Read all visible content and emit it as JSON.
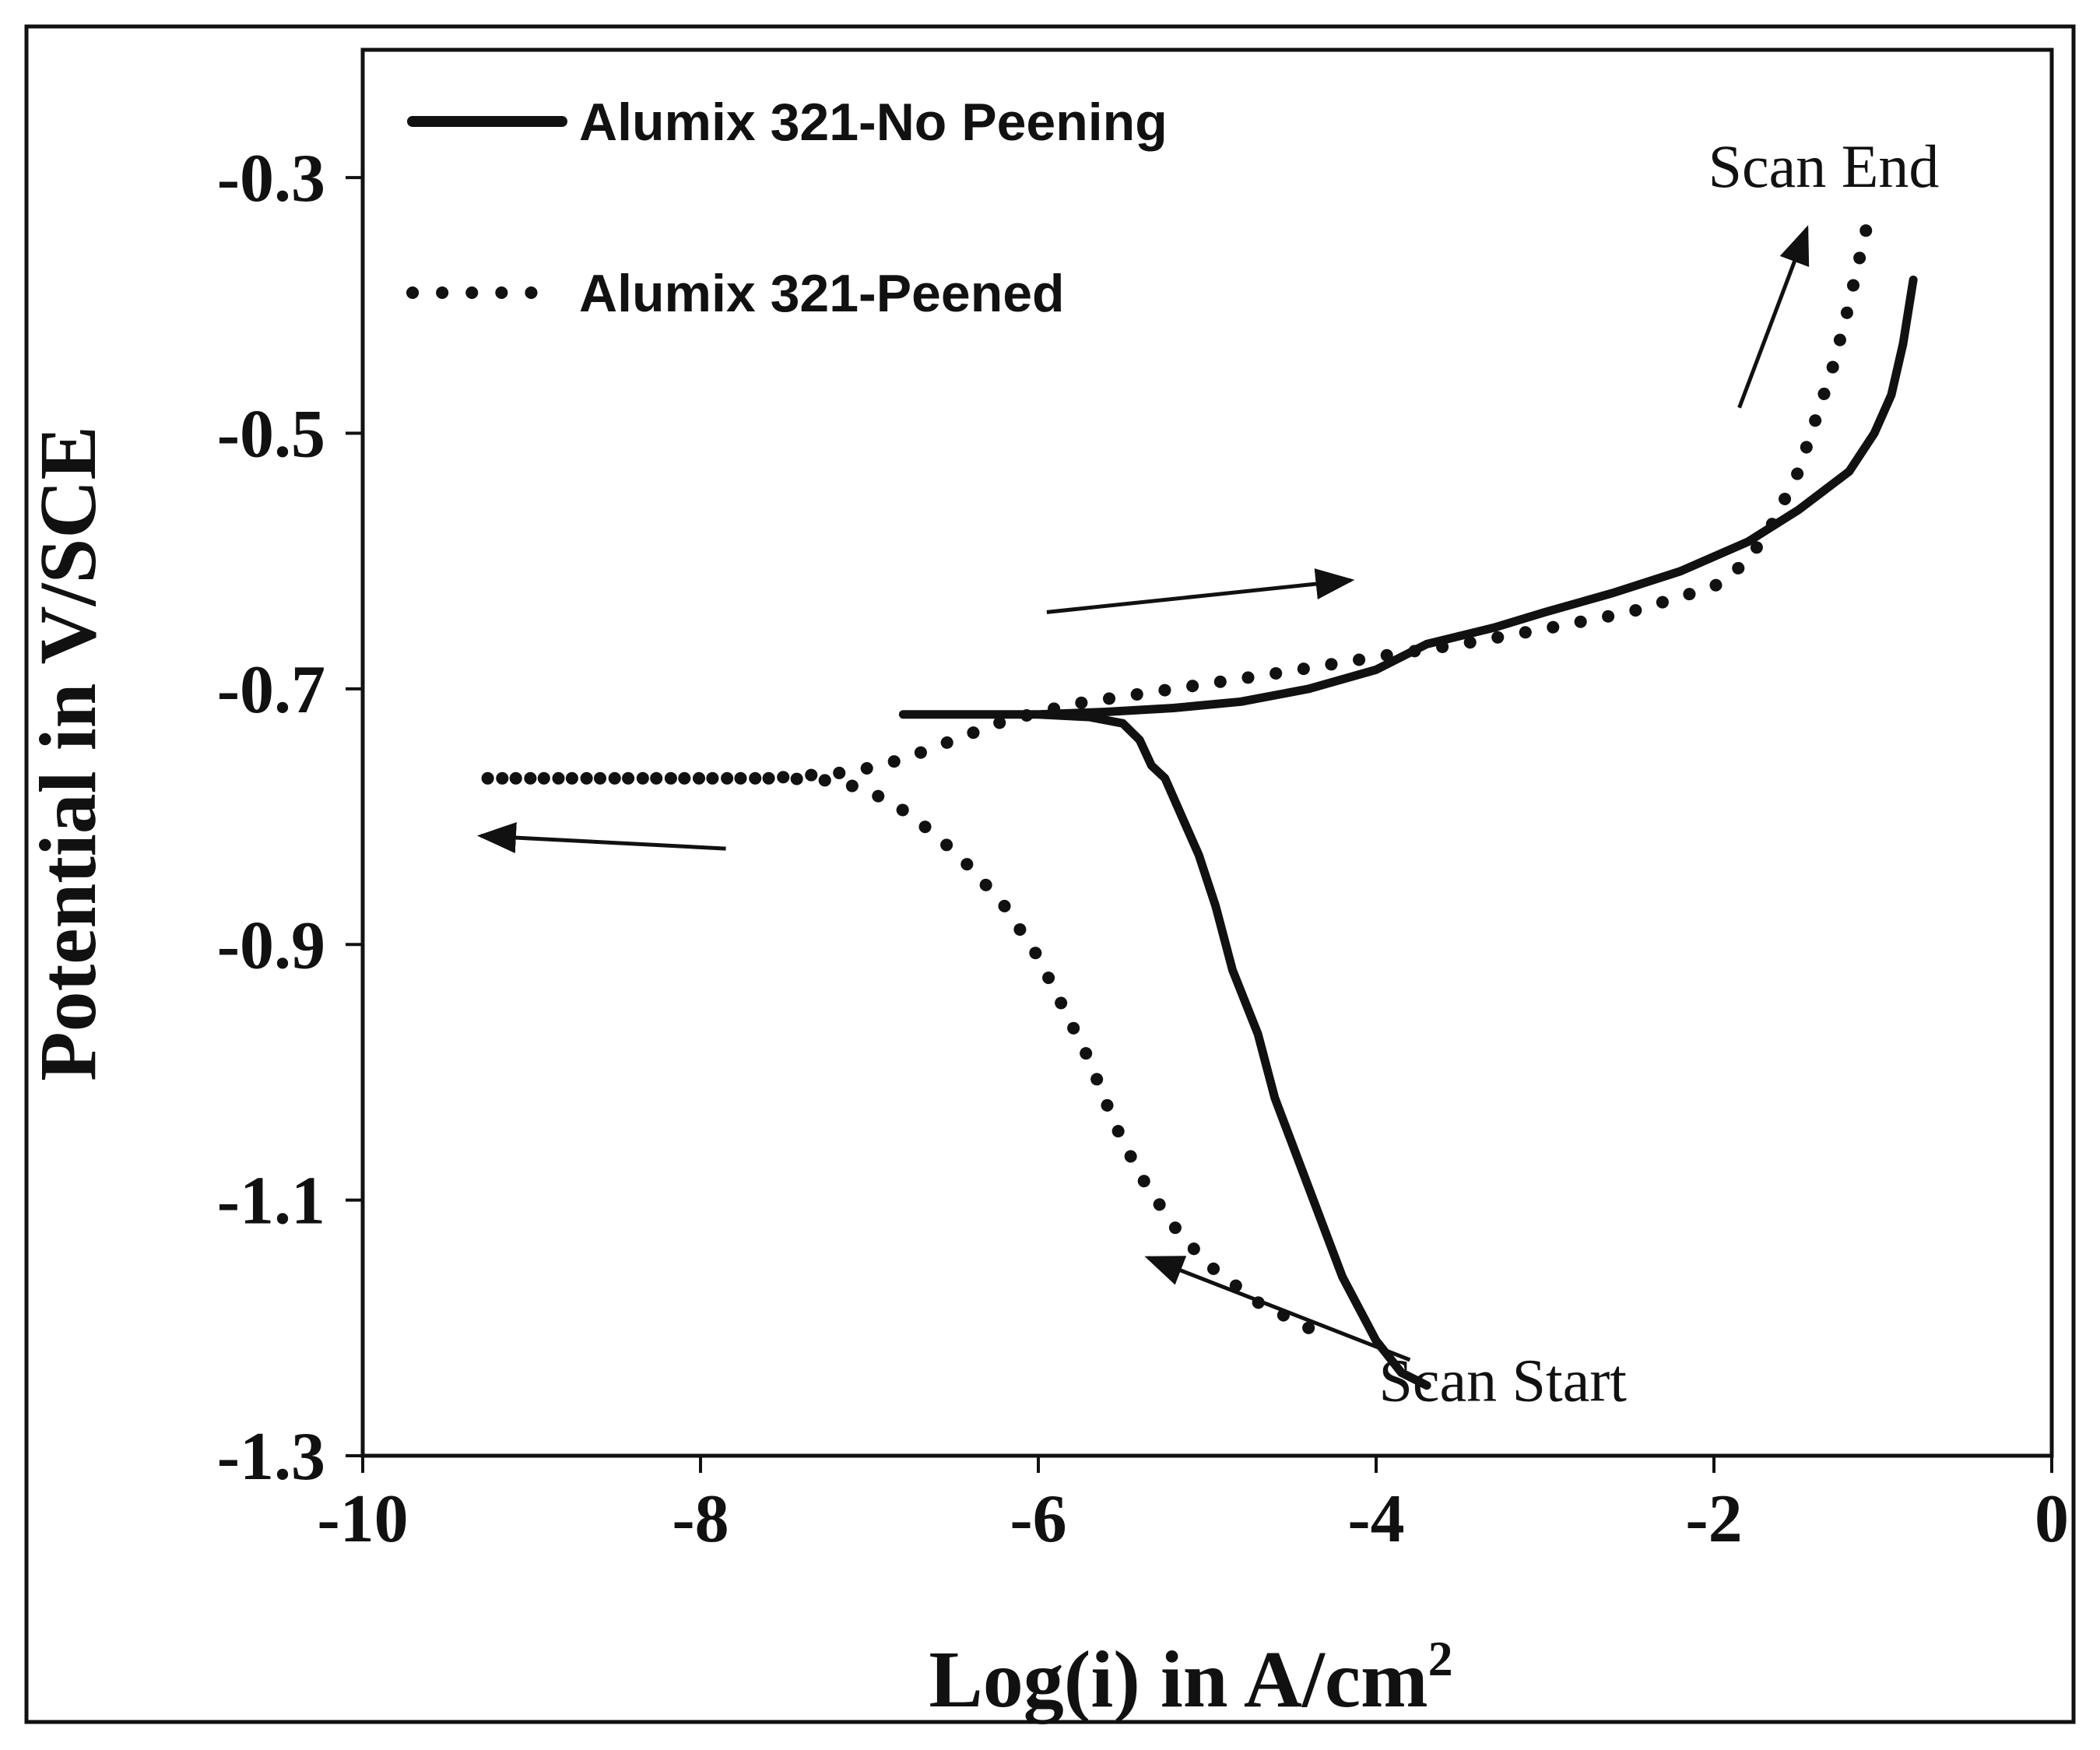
{
  "chart_data": {
    "type": "line",
    "title": "",
    "xlabel": "Log(i) in A/cm",
    "xlabel_superscript": "2",
    "ylabel": "Potential in V/SCE",
    "xlim": [
      -10,
      0
    ],
    "ylim": [
      -1.3,
      -0.2
    ],
    "xticks": [
      -10,
      -8,
      -6,
      -4,
      -2,
      0
    ],
    "xtick_labels": [
      "-10",
      "-8",
      "-6",
      "-4",
      "-2",
      "0"
    ],
    "yticks": [
      -0.3,
      -0.5,
      -0.7,
      -0.9,
      -1.1,
      -1.3
    ],
    "ytick_labels": [
      "-0.3",
      "-0.5",
      "-0.7",
      "-0.9",
      "-1.1",
      "-1.3"
    ],
    "grid": false,
    "legend_position": "top-left",
    "series": [
      {
        "name": "Alumix 321-No Peening",
        "style": "solid",
        "x": [
          -3.7,
          -3.85,
          -4.0,
          -4.2,
          -4.4,
          -4.6,
          -4.7,
          -4.85,
          -4.95,
          -5.05,
          -5.15,
          -5.25,
          -5.33,
          -5.4,
          -5.5,
          -5.7,
          -6.0,
          -6.4,
          -6.8,
          -6.4,
          -6.0,
          -5.6,
          -5.2,
          -4.8,
          -4.4,
          -4.0,
          -3.7,
          -3.3,
          -3.0,
          -2.6,
          -2.2,
          -1.8,
          -1.5,
          -1.2,
          -1.05,
          -0.95,
          -0.88,
          -0.82
        ],
        "y": [
          -1.245,
          -1.235,
          -1.21,
          -1.16,
          -1.09,
          -1.02,
          -0.97,
          -0.92,
          -0.87,
          -0.83,
          -0.8,
          -0.77,
          -0.76,
          -0.74,
          -0.727,
          -0.722,
          -0.72,
          -0.72,
          -0.72,
          -0.72,
          -0.72,
          -0.718,
          -0.715,
          -0.71,
          -0.7,
          -0.685,
          -0.665,
          -0.652,
          -0.64,
          -0.625,
          -0.608,
          -0.585,
          -0.56,
          -0.53,
          -0.5,
          -0.47,
          -0.43,
          -0.38
        ]
      },
      {
        "name": "Alumix 321-Peened",
        "style": "dotted",
        "x": [
          -4.4,
          -4.7,
          -5.0,
          -5.2,
          -5.4,
          -5.55,
          -5.7,
          -5.85,
          -6.0,
          -6.2,
          -6.4,
          -6.6,
          -6.8,
          -7.0,
          -7.2,
          -7.5,
          -7.8,
          -8.2,
          -8.6,
          -9.0,
          -9.3,
          -8.8,
          -8.2,
          -7.6,
          -7.1,
          -6.8,
          -6.5,
          -6.2,
          -5.8,
          -5.2,
          -4.6,
          -4.0,
          -3.5,
          -3.0,
          -2.5,
          -2.0,
          -1.8,
          -1.65,
          -1.5,
          -1.4,
          -1.3,
          -1.22,
          -1.15,
          -1.08
        ],
        "y": [
          -1.2,
          -1.18,
          -1.15,
          -1.12,
          -1.08,
          -1.04,
          -0.99,
          -0.95,
          -0.91,
          -0.87,
          -0.84,
          -0.815,
          -0.795,
          -0.78,
          -0.772,
          -0.77,
          -0.77,
          -0.77,
          -0.77,
          -0.77,
          -0.77,
          -0.77,
          -0.77,
          -0.77,
          -0.765,
          -0.755,
          -0.74,
          -0.725,
          -0.712,
          -0.7,
          -0.688,
          -0.675,
          -0.665,
          -0.653,
          -0.64,
          -0.62,
          -0.6,
          -0.57,
          -0.53,
          -0.49,
          -0.45,
          -0.41,
          -0.37,
          -0.33
        ]
      }
    ],
    "annotations": [
      {
        "text": "Scan End",
        "x": -1.35,
        "y": -0.29
      },
      {
        "text": "Scan Start",
        "x": -3.25,
        "y": -1.24
      }
    ],
    "arrows": [
      {
        "from": [
          -1.85,
          -0.48
        ],
        "to": [
          -1.45,
          -0.34
        ]
      },
      {
        "from": [
          -5.95,
          -0.64
        ],
        "to": [
          -4.15,
          -0.615
        ]
      },
      {
        "from": [
          -7.85,
          -0.825
        ],
        "to": [
          -9.3,
          -0.815
        ]
      },
      {
        "from": [
          -3.8,
          -1.225
        ],
        "to": [
          -5.35,
          -1.145
        ]
      }
    ]
  }
}
